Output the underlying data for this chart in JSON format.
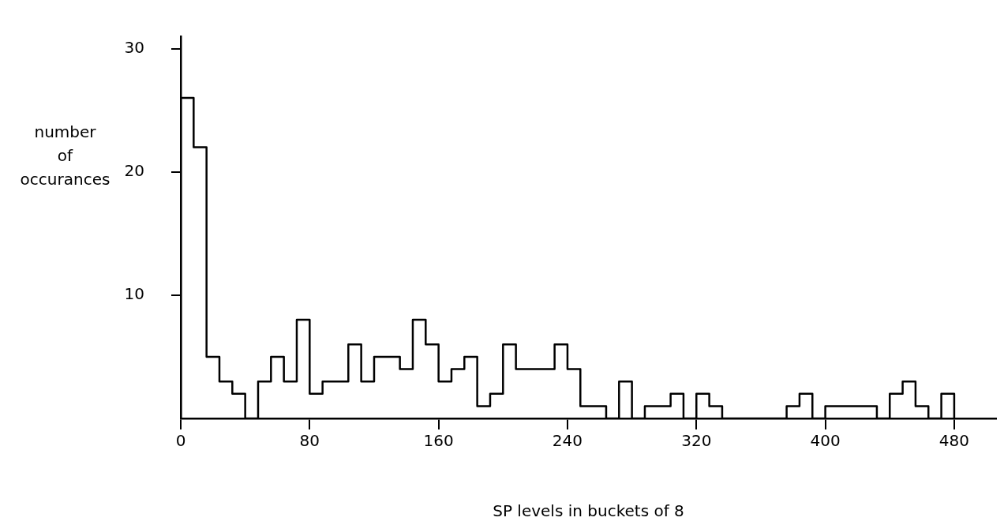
{
  "chart_data": {
    "type": "histogram",
    "xlabel": "SP levels in buckets of 8",
    "ylabel": "number of occurances",
    "bins": [
      0,
      8,
      16,
      24,
      32,
      40,
      48,
      56,
      64,
      72,
      80,
      88,
      96,
      104,
      112,
      120,
      128,
      136,
      144,
      152,
      160,
      168,
      176,
      184,
      192,
      200,
      208,
      216,
      224,
      232,
      240,
      248,
      256,
      264,
      272,
      280,
      288,
      296,
      304,
      312,
      320,
      328,
      336,
      344,
      352,
      360,
      368,
      376,
      384,
      392,
      400,
      408,
      416,
      424,
      432,
      440,
      448,
      456,
      464,
      472,
      480
    ],
    "values": [
      26,
      22,
      5,
      3,
      2,
      0,
      3,
      5,
      3,
      8,
      2,
      3,
      3,
      6,
      3,
      5,
      5,
      4,
      8,
      6,
      3,
      4,
      5,
      1,
      2,
      6,
      4,
      4,
      4,
      6,
      4,
      1,
      1,
      0,
      3,
      0,
      1,
      1,
      2,
      0,
      2,
      1,
      0,
      0,
      0,
      0,
      0,
      1,
      2,
      0,
      1,
      1,
      1,
      1,
      0,
      2,
      3,
      1,
      0,
      2
    ],
    "color": "#000000",
    "xlim": [
      0,
      506
    ],
    "xticks": [
      0,
      80,
      160,
      240,
      320,
      400,
      480
    ],
    "ylim": [
      0,
      31
    ],
    "yticks": [
      10,
      20,
      30
    ],
    "grid": false,
    "legend": false
  }
}
